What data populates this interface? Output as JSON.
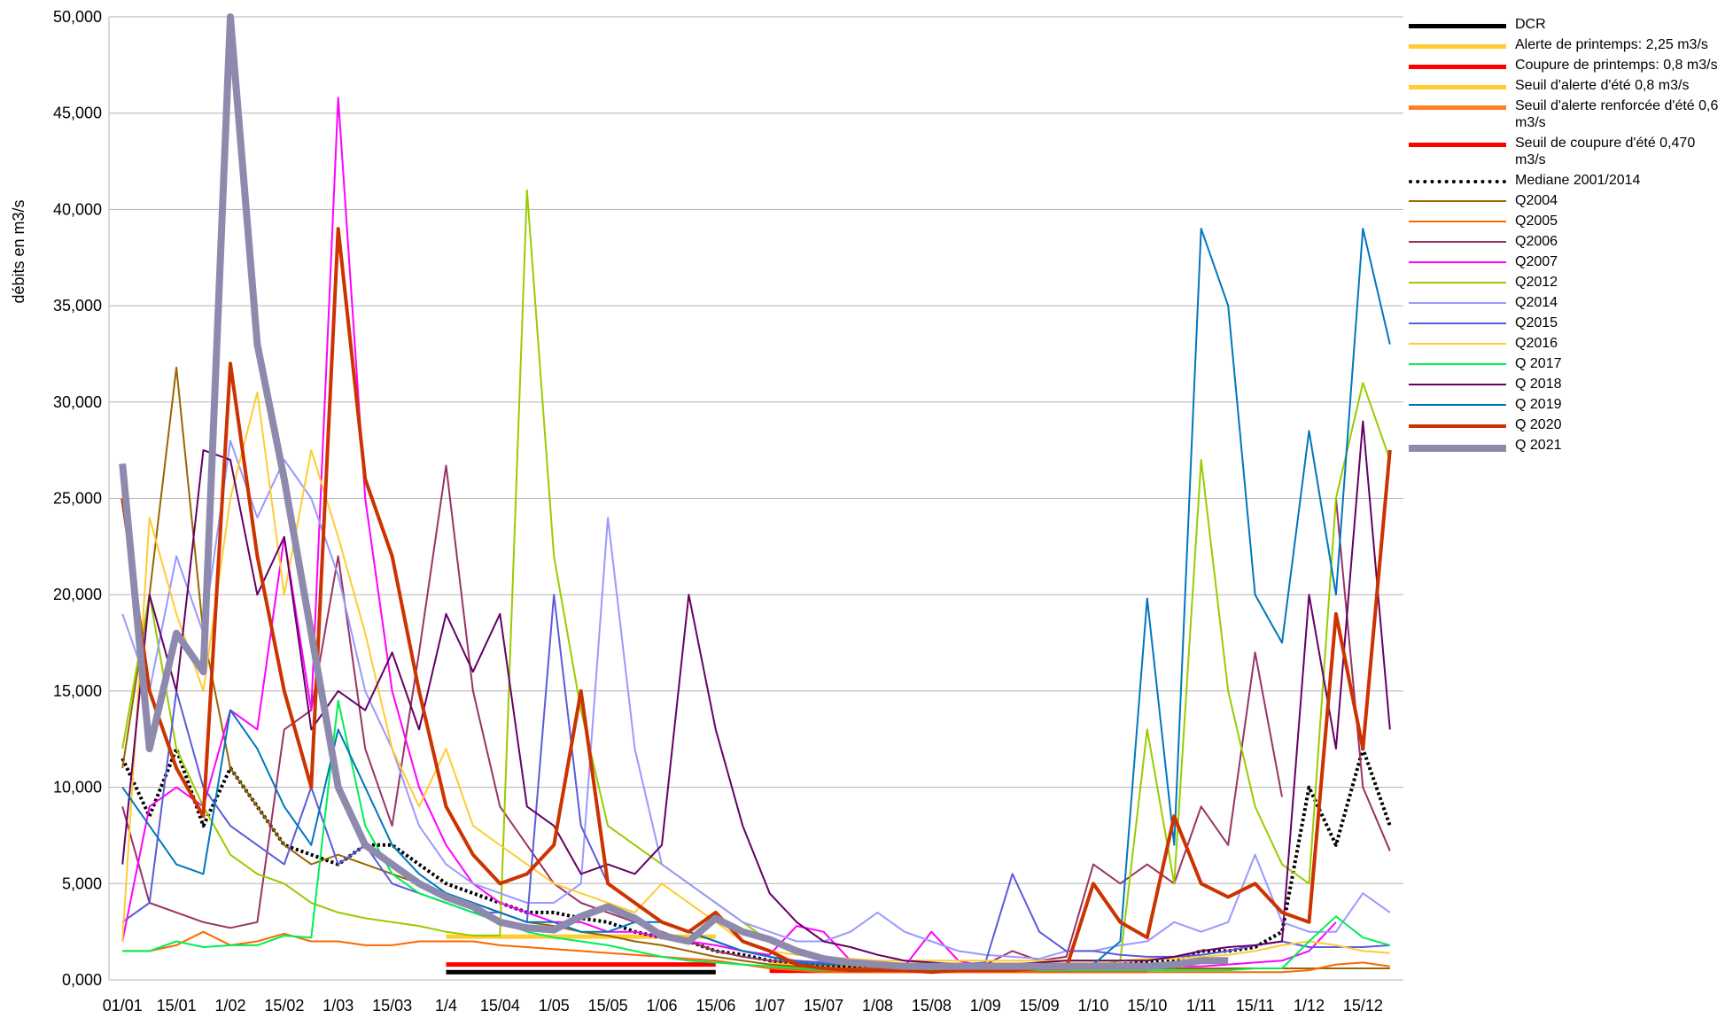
{
  "chart_data": {
    "type": "line",
    "y_label": "débits en m3/s",
    "categories": [
      "01/01",
      null,
      "15/01",
      null,
      "1/02",
      null,
      "15/02",
      null,
      "1/03",
      null,
      "15/03",
      null,
      "1/4",
      null,
      "15/04",
      null,
      "1/05",
      null,
      "15/05",
      null,
      "1/06",
      null,
      "15/06",
      null,
      "1/07",
      null,
      "15/07",
      null,
      "1/08",
      null,
      "15/08",
      null,
      "1/09",
      null,
      "15/09",
      null,
      "1/10",
      null,
      "15/10",
      null,
      "1/11",
      null,
      "15/11",
      null,
      "1/12",
      null,
      "15/12",
      null
    ],
    "ylim": [
      0,
      50000
    ],
    "yticks": [
      {
        "value": 0,
        "label": "0,000"
      },
      {
        "value": 5000,
        "label": "5,000"
      },
      {
        "value": 10000,
        "label": "10,000"
      },
      {
        "value": 15000,
        "label": "15,000"
      },
      {
        "value": 20000,
        "label": "20,000"
      },
      {
        "value": 25000,
        "label": "25,000"
      },
      {
        "value": 30000,
        "label": "30,000"
      },
      {
        "value": 35000,
        "label": "35,000"
      },
      {
        "value": 40000,
        "label": "40,000"
      },
      {
        "value": 45000,
        "label": "45,000"
      },
      {
        "value": 50000,
        "label": "50,000"
      }
    ],
    "grid": true,
    "legend": "right",
    "series": [
      {
        "name": "DCR",
        "color": "#000000",
        "line_width": 5,
        "values": [
          null,
          null,
          null,
          null,
          null,
          null,
          null,
          null,
          null,
          null,
          null,
          null,
          400,
          400,
          400,
          400,
          400,
          400,
          400,
          400,
          400,
          400,
          400,
          null,
          null,
          null,
          null,
          null,
          null,
          null,
          null,
          null,
          null,
          null,
          null,
          null,
          null,
          null,
          null,
          null,
          null,
          null,
          null,
          null,
          null,
          null,
          null,
          null
        ]
      },
      {
        "name": "Alerte de printemps: 2,25 m3/s",
        "color": "#ffcc33",
        "line_width": 5,
        "values": [
          null,
          null,
          null,
          null,
          null,
          null,
          null,
          null,
          null,
          null,
          null,
          null,
          2250,
          2250,
          2250,
          2250,
          2250,
          2250,
          2250,
          2250,
          2250,
          2250,
          2250,
          null,
          null,
          null,
          null,
          null,
          null,
          null,
          null,
          null,
          null,
          null,
          null,
          null,
          null,
          null,
          null,
          null,
          null,
          null,
          null,
          null,
          null,
          null,
          null,
          null
        ]
      },
      {
        "name": "Coupure de printemps: 0,8 m3/s",
        "color": "#ff0000",
        "line_width": 5,
        "values": [
          null,
          null,
          null,
          null,
          null,
          null,
          null,
          null,
          null,
          null,
          null,
          null,
          800,
          800,
          800,
          800,
          800,
          800,
          800,
          800,
          800,
          800,
          800,
          null,
          null,
          null,
          null,
          null,
          null,
          null,
          null,
          null,
          null,
          null,
          null,
          null,
          null,
          null,
          null,
          null,
          null,
          null,
          null,
          null,
          null,
          null,
          null,
          null
        ]
      },
      {
        "name": "Seuil d'alerte d'été 0,8 m3/s",
        "color": "#ffcc33",
        "line_width": 5,
        "values": [
          null,
          null,
          null,
          null,
          null,
          null,
          null,
          null,
          null,
          null,
          null,
          null,
          null,
          null,
          null,
          null,
          null,
          null,
          null,
          null,
          null,
          null,
          null,
          null,
          800,
          800,
          800,
          800,
          800,
          800,
          800,
          800,
          800,
          800,
          800,
          800,
          800,
          800,
          800,
          null,
          null,
          null,
          null,
          null,
          null,
          null,
          null,
          null
        ]
      },
      {
        "name": "Seuil d'alerte renforcée d'été 0,6 m3/s",
        "color": "#ff7f27",
        "line_width": 5,
        "values": [
          null,
          null,
          null,
          null,
          null,
          null,
          null,
          null,
          null,
          null,
          null,
          null,
          null,
          null,
          null,
          null,
          null,
          null,
          null,
          null,
          null,
          null,
          null,
          null,
          600,
          600,
          600,
          600,
          600,
          600,
          600,
          600,
          600,
          600,
          600,
          600,
          600,
          600,
          600,
          null,
          null,
          null,
          null,
          null,
          null,
          null,
          null,
          null
        ]
      },
      {
        "name": "Seuil de coupure d'été 0,470 m3/s",
        "color": "#ff0000",
        "line_width": 5,
        "values": [
          null,
          null,
          null,
          null,
          null,
          null,
          null,
          null,
          null,
          null,
          null,
          null,
          null,
          null,
          null,
          null,
          null,
          null,
          null,
          null,
          null,
          null,
          null,
          null,
          470,
          470,
          470,
          470,
          470,
          470,
          470,
          470,
          470,
          470,
          470,
          470,
          470,
          470,
          470,
          null,
          null,
          null,
          null,
          null,
          null,
          null,
          null,
          null
        ]
      },
      {
        "name": "Mediane 2001/2014",
        "color": "#000000",
        "line_width": 4,
        "style": "dotted",
        "values": [
          11500,
          8500,
          12000,
          8000,
          11000,
          9000,
          7000,
          6500,
          6000,
          7000,
          7000,
          6000,
          5000,
          4500,
          4000,
          3500,
          3500,
          3200,
          3000,
          2500,
          2200,
          2000,
          1500,
          1300,
          1000,
          900,
          800,
          700,
          700,
          600,
          600,
          600,
          600,
          600,
          600,
          600,
          800,
          800,
          900,
          1000,
          1500,
          1500,
          1700,
          2500,
          10000,
          7000,
          12000,
          8000
        ]
      },
      {
        "name": "Q2004",
        "color": "#996600",
        "line_width": 2,
        "values": [
          11000,
          20000,
          31800,
          18000,
          11000,
          9000,
          7000,
          6000,
          6500,
          6000,
          5500,
          5000,
          4500,
          4000,
          3500,
          3000,
          2800,
          2500,
          2300,
          2000,
          1800,
          1500,
          1200,
          1000,
          800,
          700,
          600,
          600,
          600,
          600,
          600,
          600,
          600,
          600,
          600,
          600,
          600,
          600,
          600,
          600,
          600,
          600,
          600,
          600,
          600,
          600,
          600,
          600
        ]
      },
      {
        "name": "Q2005",
        "color": "#ff6600",
        "line_width": 2,
        "values": [
          1500,
          1500,
          1800,
          2500,
          1800,
          2000,
          2400,
          2000,
          2000,
          1800,
          1800,
          2000,
          2000,
          2000,
          1800,
          1700,
          1600,
          1500,
          1400,
          1300,
          1200,
          1100,
          1000,
          800,
          600,
          500,
          400,
          400,
          400,
          400,
          400,
          400,
          400,
          400,
          400,
          400,
          400,
          400,
          400,
          400,
          400,
          400,
          400,
          400,
          500,
          800,
          900,
          700
        ]
      },
      {
        "name": "Q2006",
        "color": "#993366",
        "line_width": 2,
        "values": [
          9000,
          4000,
          3500,
          3000,
          2700,
          3000,
          13000,
          14000,
          22000,
          12000,
          8000,
          17000,
          26700,
          15000,
          9000,
          7000,
          5000,
          4000,
          3500,
          3000,
          2500,
          2000,
          1500,
          1200,
          1000,
          900,
          800,
          800,
          800,
          800,
          800,
          800,
          800,
          1500,
          1000,
          1200,
          6000,
          5000,
          6000,
          5000,
          9000,
          7000,
          17000,
          9500,
          null,
          25000,
          10000,
          6700
        ]
      },
      {
        "name": "Q2007",
        "color": "#ff00ff",
        "line_width": 2,
        "values": [
          2000,
          9000,
          10000,
          9000,
          14000,
          13000,
          23000,
          14000,
          45800,
          25000,
          15000,
          10000,
          7000,
          5000,
          4000,
          3500,
          3000,
          3000,
          2500,
          2500,
          2200,
          2000,
          1800,
          1500,
          1300,
          2800,
          2500,
          1000,
          800,
          700,
          2500,
          1000,
          700,
          700,
          700,
          700,
          700,
          700,
          700,
          700,
          700,
          800,
          900,
          1000,
          1500,
          3000,
          null,
          null
        ]
      },
      {
        "name": "Q2012",
        "color": "#99cc00",
        "line_width": 2,
        "values": [
          12000,
          20000,
          12000,
          9000,
          6500,
          5500,
          5000,
          4000,
          3500,
          3200,
          3000,
          2800,
          2500,
          2300,
          2300,
          41000,
          22000,
          14000,
          8000,
          7000,
          6000,
          5000,
          4000,
          3000,
          2000,
          1500,
          1000,
          800,
          700,
          600,
          600,
          600,
          600,
          600,
          600,
          700,
          700,
          1000,
          13000,
          5000,
          27000,
          15000,
          9000,
          6000,
          5000,
          25000,
          31000,
          27000
        ]
      },
      {
        "name": "Q2014",
        "color": "#9999ff",
        "line_width": 2,
        "values": [
          19000,
          15000,
          22000,
          18000,
          28000,
          24000,
          27000,
          25000,
          21000,
          15000,
          12000,
          8000,
          6000,
          5000,
          4500,
          4000,
          4000,
          5000,
          24000,
          12000,
          6000,
          5000,
          4000,
          3000,
          2500,
          2000,
          2000,
          2500,
          3500,
          2500,
          2000,
          1500,
          1300,
          1200,
          1100,
          1500,
          1500,
          1800,
          2000,
          3000,
          2500,
          3000,
          6500,
          3000,
          2500,
          2500,
          4500,
          3500
        ]
      },
      {
        "name": "Q2015",
        "color": "#5b5bdb",
        "line_width": 2,
        "values": [
          3000,
          4000,
          15000,
          10000,
          8000,
          7000,
          6000,
          10000,
          6000,
          7000,
          5000,
          4500,
          4000,
          3500,
          3500,
          3000,
          20000,
          8000,
          5000,
          4000,
          3000,
          2500,
          2000,
          1500,
          1200,
          1000,
          900,
          800,
          800,
          800,
          800,
          800,
          900,
          5500,
          2500,
          1500,
          1500,
          1300,
          1200,
          1200,
          1300,
          1500,
          1800,
          2000,
          1700,
          1700,
          1700,
          1800
        ]
      },
      {
        "name": "Q2016",
        "color": "#ffcc33",
        "line_width": 2,
        "values": [
          2000,
          24000,
          19000,
          15000,
          25000,
          30500,
          20000,
          27500,
          23000,
          18000,
          12000,
          9000,
          12000,
          8000,
          7000,
          6000,
          5000,
          4500,
          4000,
          3500,
          5000,
          4000,
          3000,
          2000,
          1500,
          1300,
          1200,
          1100,
          1000,
          1000,
          1000,
          1000,
          1000,
          1000,
          1000,
          1000,
          1000,
          1000,
          1100,
          1100,
          1200,
          1300,
          1500,
          1800,
          2000,
          1800,
          1500,
          1400
        ]
      },
      {
        "name": "Q 2017",
        "color": "#00ee55",
        "line_width": 2,
        "values": [
          1500,
          1500,
          2000,
          1700,
          1800,
          1800,
          2300,
          2200,
          14500,
          8000,
          5500,
          4500,
          4000,
          3500,
          3000,
          2500,
          2200,
          2000,
          1800,
          1500,
          1200,
          1000,
          900,
          800,
          700,
          600,
          500,
          500,
          500,
          500,
          500,
          500,
          500,
          500,
          500,
          500,
          500,
          500,
          500,
          500,
          500,
          500,
          600,
          600,
          2000,
          3300,
          2200,
          1800
        ]
      },
      {
        "name": "Q 2018",
        "color": "#660066",
        "line_width": 2,
        "values": [
          6000,
          20000,
          15000,
          27500,
          27000,
          20000,
          23000,
          13000,
          15000,
          14000,
          17000,
          13000,
          19000,
          16000,
          19000,
          9000,
          8000,
          5500,
          6000,
          5500,
          7000,
          20000,
          13000,
          8000,
          4500,
          3000,
          2000,
          1700,
          1300,
          1000,
          900,
          800,
          800,
          800,
          900,
          1000,
          1000,
          1000,
          1000,
          1200,
          1500,
          1700,
          1800,
          2000,
          20000,
          12000,
          29000,
          13000
        ]
      },
      {
        "name": "Q 2019",
        "color": "#0077bd",
        "line_width": 2,
        "values": [
          10000,
          8000,
          6000,
          5500,
          14000,
          12000,
          9000,
          7000,
          13000,
          10000,
          7000,
          5500,
          4500,
          4000,
          3500,
          3000,
          3000,
          2500,
          2500,
          3000,
          3000,
          2500,
          2000,
          1500,
          1200,
          900,
          800,
          800,
          700,
          700,
          700,
          700,
          700,
          700,
          700,
          700,
          800,
          2000,
          19800,
          7000,
          39000,
          35000,
          20000,
          17500,
          28500,
          20000,
          39000,
          33000
        ]
      },
      {
        "name": "Q 2020",
        "color": "#cc3300",
        "line_width": 4,
        "values": [
          25000,
          15000,
          11000,
          8500,
          32000,
          22000,
          15000,
          10000,
          39000,
          26000,
          22000,
          15000,
          9000,
          6500,
          5000,
          5500,
          7000,
          15000,
          5000,
          4000,
          3000,
          2500,
          3500,
          2000,
          1500,
          800,
          600,
          500,
          500,
          500,
          400,
          500,
          500,
          500,
          600,
          600,
          5000,
          3000,
          2200,
          8500,
          5000,
          4300,
          5000,
          3500,
          3000,
          19000,
          12000,
          27500
        ]
      },
      {
        "name": "Q 2021",
        "color": "#8e8aad",
        "line_width": 8,
        "values": [
          26800,
          12000,
          18000,
          16000,
          50000,
          33000,
          26000,
          18000,
          10000,
          7000,
          6000,
          5000,
          4300,
          3800,
          3000,
          2700,
          2600,
          3300,
          3800,
          3200,
          2300,
          2000,
          3200,
          2500,
          2100,
          1500,
          1100,
          900,
          800,
          700,
          700,
          700,
          700,
          700,
          700,
          700,
          700,
          700,
          700,
          800,
          1000,
          1000,
          null,
          null,
          null,
          null,
          null,
          null
        ]
      }
    ]
  }
}
